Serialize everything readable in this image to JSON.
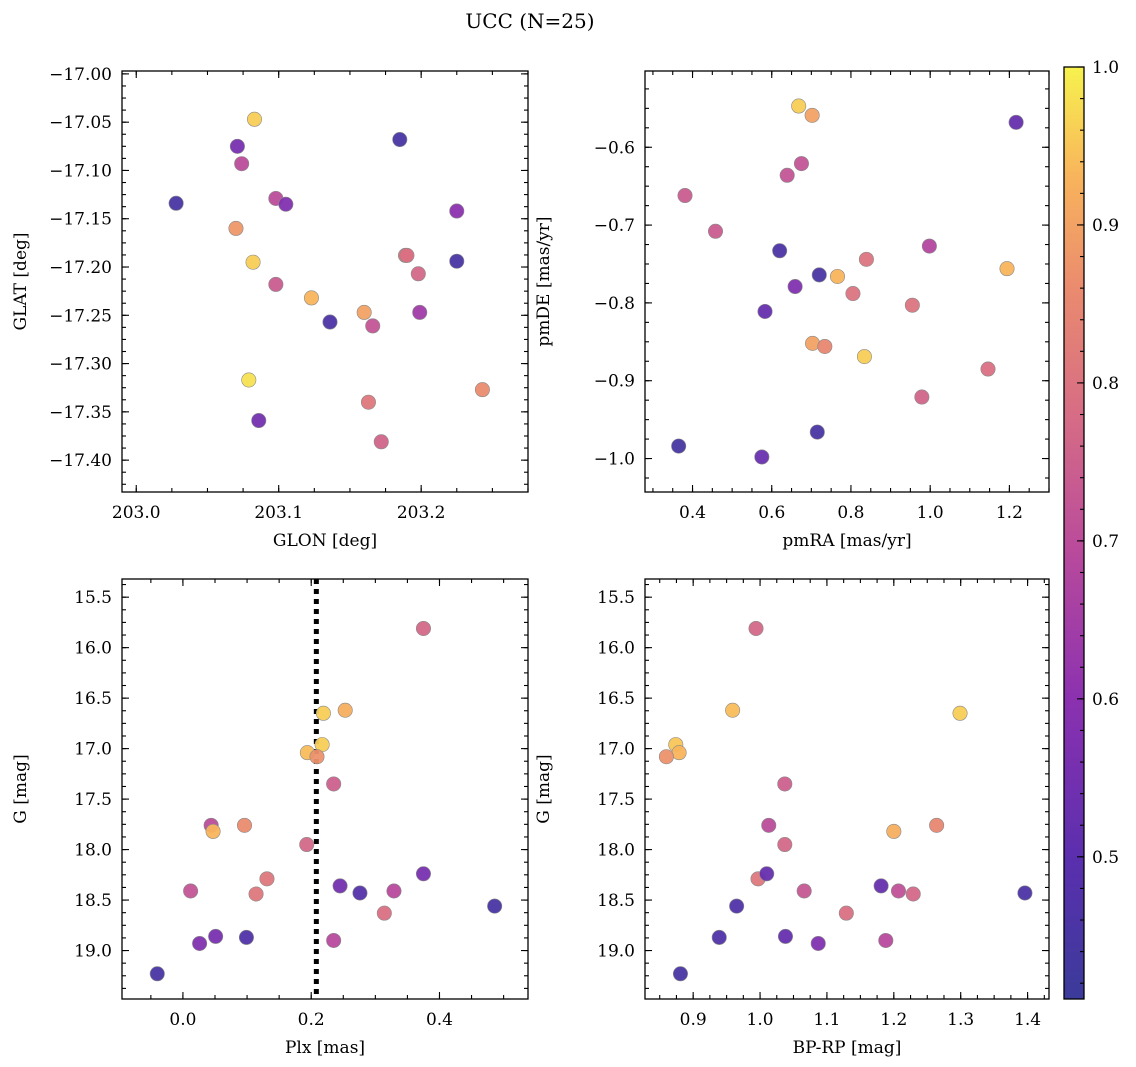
{
  "figure": {
    "title": "UCC (N=25)"
  },
  "colorbar": {
    "range": [
      0.41,
      1.0
    ],
    "ticks": [
      0.5,
      0.6,
      0.7,
      0.8,
      0.9,
      1.0
    ],
    "tick_labels": [
      "0.5",
      "0.6",
      "0.7",
      "0.8",
      "0.9",
      "1.0"
    ],
    "colormap": "plasma"
  },
  "chart_data": [
    {
      "type": "scatter",
      "id": "glon-glat",
      "xlabel": "GLON [deg]",
      "ylabel": "GLAT [deg]",
      "xlim": [
        202.99,
        203.275
      ],
      "ylim": [
        -17.433,
        -16.997
      ],
      "y_inverted": false,
      "xticks": [
        203.0,
        203.1,
        203.2
      ],
      "xtick_labels": [
        "203.0",
        "203.1",
        "203.2"
      ],
      "yticks": [
        -17.4,
        -17.35,
        -17.3,
        -17.25,
        -17.2,
        -17.15,
        -17.1,
        -17.05,
        -17.0
      ],
      "ytick_labels": [
        "−17.40",
        "−17.35",
        "−17.30",
        "−17.25",
        "−17.20",
        "−17.15",
        "−17.10",
        "−17.05",
        "−17.00"
      ],
      "points": [
        {
          "x": 203.028,
          "y": -17.134,
          "c": 0.45
        },
        {
          "x": 203.083,
          "y": -17.047,
          "c": 0.96
        },
        {
          "x": 203.071,
          "y": -17.075,
          "c": 0.56
        },
        {
          "x": 203.074,
          "y": -17.093,
          "c": 0.7
        },
        {
          "x": 203.098,
          "y": -17.129,
          "c": 0.7
        },
        {
          "x": 203.105,
          "y": -17.135,
          "c": 0.58
        },
        {
          "x": 203.07,
          "y": -17.16,
          "c": 0.88
        },
        {
          "x": 203.082,
          "y": -17.195,
          "c": 0.96
        },
        {
          "x": 203.098,
          "y": -17.218,
          "c": 0.74
        },
        {
          "x": 203.123,
          "y": -17.232,
          "c": 0.93
        },
        {
          "x": 203.136,
          "y": -17.257,
          "c": 0.46
        },
        {
          "x": 203.079,
          "y": -17.317,
          "c": 0.98
        },
        {
          "x": 203.086,
          "y": -17.359,
          "c": 0.55
        },
        {
          "x": 203.185,
          "y": -17.068,
          "c": 0.45
        },
        {
          "x": 203.16,
          "y": -17.247,
          "c": 0.9
        },
        {
          "x": 203.166,
          "y": -17.261,
          "c": 0.72
        },
        {
          "x": 203.163,
          "y": -17.34,
          "c": 0.81
        },
        {
          "x": 203.172,
          "y": -17.381,
          "c": 0.76
        },
        {
          "x": 203.189,
          "y": -17.188,
          "c": 0.8
        },
        {
          "x": 203.198,
          "y": -17.207,
          "c": 0.77
        },
        {
          "x": 203.199,
          "y": -17.247,
          "c": 0.64
        },
        {
          "x": 203.225,
          "y": -17.142,
          "c": 0.6
        },
        {
          "x": 203.225,
          "y": -17.194,
          "c": 0.45
        },
        {
          "x": 203.243,
          "y": -17.327,
          "c": 0.86
        },
        {
          "x": 203.19,
          "y": -17.188,
          "c": 0.79
        }
      ]
    },
    {
      "type": "scatter",
      "id": "pmra-pmde",
      "xlabel": "pmRA [mas/yr]",
      "ylabel": "pmDE [mas/yr]",
      "xlim": [
        0.28,
        1.3
      ],
      "ylim": [
        -1.043,
        -0.502
      ],
      "y_inverted": false,
      "xticks": [
        0.4,
        0.6,
        0.8,
        1.0,
        1.2
      ],
      "xtick_labels": [
        "0.4",
        "0.6",
        "0.8",
        "1.0",
        "1.2"
      ],
      "yticks": [
        -1.0,
        -0.9,
        -0.8,
        -0.7,
        -0.6
      ],
      "ytick_labels": [
        "−1.0",
        "−0.9",
        "−0.8",
        "−0.7",
        "−0.6"
      ],
      "points": [
        {
          "x": 0.668,
          "y": -0.547,
          "c": 0.96
        },
        {
          "x": 0.702,
          "y": -0.559,
          "c": 0.9
        },
        {
          "x": 1.217,
          "y": -0.568,
          "c": 0.52
        },
        {
          "x": 0.675,
          "y": -0.621,
          "c": 0.72
        },
        {
          "x": 0.639,
          "y": -0.636,
          "c": 0.72
        },
        {
          "x": 0.381,
          "y": -0.662,
          "c": 0.74
        },
        {
          "x": 0.458,
          "y": -0.708,
          "c": 0.74
        },
        {
          "x": 0.998,
          "y": -0.727,
          "c": 0.68
        },
        {
          "x": 0.62,
          "y": -0.733,
          "c": 0.46
        },
        {
          "x": 0.72,
          "y": -0.764,
          "c": 0.45
        },
        {
          "x": 0.766,
          "y": -0.766,
          "c": 0.93
        },
        {
          "x": 0.839,
          "y": -0.744,
          "c": 0.8
        },
        {
          "x": 1.194,
          "y": -0.756,
          "c": 0.93
        },
        {
          "x": 0.659,
          "y": -0.779,
          "c": 0.58
        },
        {
          "x": 0.805,
          "y": -0.788,
          "c": 0.8
        },
        {
          "x": 0.583,
          "y": -0.811,
          "c": 0.52
        },
        {
          "x": 0.955,
          "y": -0.803,
          "c": 0.8
        },
        {
          "x": 0.703,
          "y": -0.852,
          "c": 0.9
        },
        {
          "x": 0.734,
          "y": -0.856,
          "c": 0.85
        },
        {
          "x": 0.834,
          "y": -0.869,
          "c": 0.96
        },
        {
          "x": 1.146,
          "y": -0.885,
          "c": 0.79
        },
        {
          "x": 0.979,
          "y": -0.921,
          "c": 0.76
        },
        {
          "x": 0.715,
          "y": -0.966,
          "c": 0.45
        },
        {
          "x": 0.365,
          "y": -0.984,
          "c": 0.44
        },
        {
          "x": 0.575,
          "y": -0.998,
          "c": 0.53
        }
      ]
    },
    {
      "type": "scatter",
      "id": "plx-g",
      "xlabel": "Plx [mas]",
      "ylabel": "G [mag]",
      "xlim": [
        -0.095,
        0.538
      ],
      "ylim": [
        19.48,
        15.32
      ],
      "y_inverted": true,
      "vline": {
        "x": 0.208,
        "style": "dotted"
      },
      "xticks": [
        0.0,
        0.2,
        0.4
      ],
      "xtick_labels": [
        "0.0",
        "0.2",
        "0.4"
      ],
      "yticks": [
        15.5,
        16.0,
        16.5,
        17.0,
        17.5,
        18.0,
        18.5,
        19.0
      ],
      "ytick_labels": [
        "15.5",
        "16.0",
        "16.5",
        "17.0",
        "17.5",
        "18.0",
        "18.5",
        "19.0"
      ],
      "points": [
        {
          "x": 0.375,
          "y": 15.81,
          "c": 0.77
        },
        {
          "x": 0.219,
          "y": 16.65,
          "c": 0.96
        },
        {
          "x": 0.253,
          "y": 16.62,
          "c": 0.92
        },
        {
          "x": 0.217,
          "y": 16.96,
          "c": 0.96
        },
        {
          "x": 0.194,
          "y": 17.04,
          "c": 0.94
        },
        {
          "x": 0.209,
          "y": 17.08,
          "c": 0.87
        },
        {
          "x": 0.235,
          "y": 17.35,
          "c": 0.75
        },
        {
          "x": 0.044,
          "y": 17.76,
          "c": 0.7
        },
        {
          "x": 0.047,
          "y": 17.82,
          "c": 0.93
        },
        {
          "x": 0.096,
          "y": 17.76,
          "c": 0.86
        },
        {
          "x": 0.193,
          "y": 17.95,
          "c": 0.77
        },
        {
          "x": 0.131,
          "y": 18.29,
          "c": 0.81
        },
        {
          "x": 0.012,
          "y": 18.41,
          "c": 0.72
        },
        {
          "x": 0.114,
          "y": 18.44,
          "c": 0.81
        },
        {
          "x": 0.375,
          "y": 18.24,
          "c": 0.56
        },
        {
          "x": 0.245,
          "y": 18.36,
          "c": 0.55
        },
        {
          "x": 0.276,
          "y": 18.43,
          "c": 0.48
        },
        {
          "x": 0.329,
          "y": 18.41,
          "c": 0.69
        },
        {
          "x": 0.314,
          "y": 18.63,
          "c": 0.79
        },
        {
          "x": 0.486,
          "y": 18.56,
          "c": 0.45
        },
        {
          "x": 0.051,
          "y": 18.86,
          "c": 0.56
        },
        {
          "x": 0.026,
          "y": 18.93,
          "c": 0.58
        },
        {
          "x": 0.099,
          "y": 18.87,
          "c": 0.47
        },
        {
          "x": 0.235,
          "y": 18.9,
          "c": 0.69
        },
        {
          "x": -0.04,
          "y": 19.23,
          "c": 0.45
        }
      ]
    },
    {
      "type": "scatter",
      "id": "bprp-g",
      "xlabel": "BP-RP [mag]",
      "ylabel": "G [mag]",
      "xlim": [
        0.828,
        1.432
      ],
      "ylim": [
        19.48,
        15.32
      ],
      "y_inverted": true,
      "xticks": [
        0.9,
        1.0,
        1.1,
        1.2,
        1.3,
        1.4
      ],
      "xtick_labels": [
        "0.9",
        "1.0",
        "1.1",
        "1.2",
        "1.3",
        "1.4"
      ],
      "yticks": [
        15.5,
        16.0,
        16.5,
        17.0,
        17.5,
        18.0,
        18.5,
        19.0
      ],
      "ytick_labels": [
        "15.5",
        "16.0",
        "16.5",
        "17.0",
        "17.5",
        "18.0",
        "18.5",
        "19.0"
      ],
      "points": [
        {
          "x": 0.994,
          "y": 15.81,
          "c": 0.77
        },
        {
          "x": 0.959,
          "y": 16.62,
          "c": 0.94
        },
        {
          "x": 1.299,
          "y": 16.65,
          "c": 0.96
        },
        {
          "x": 0.874,
          "y": 16.96,
          "c": 0.95
        },
        {
          "x": 0.879,
          "y": 17.04,
          "c": 0.93
        },
        {
          "x": 0.86,
          "y": 17.08,
          "c": 0.87
        },
        {
          "x": 1.037,
          "y": 17.35,
          "c": 0.75
        },
        {
          "x": 1.013,
          "y": 17.76,
          "c": 0.7
        },
        {
          "x": 1.037,
          "y": 17.95,
          "c": 0.77
        },
        {
          "x": 1.2,
          "y": 17.82,
          "c": 0.92
        },
        {
          "x": 1.264,
          "y": 17.76,
          "c": 0.85
        },
        {
          "x": 0.997,
          "y": 18.29,
          "c": 0.81
        },
        {
          "x": 1.01,
          "y": 18.24,
          "c": 0.52
        },
        {
          "x": 1.066,
          "y": 18.41,
          "c": 0.73
        },
        {
          "x": 1.181,
          "y": 18.36,
          "c": 0.52
        },
        {
          "x": 1.207,
          "y": 18.41,
          "c": 0.71
        },
        {
          "x": 1.229,
          "y": 18.44,
          "c": 0.77
        },
        {
          "x": 1.396,
          "y": 18.43,
          "c": 0.46
        },
        {
          "x": 0.965,
          "y": 18.56,
          "c": 0.47
        },
        {
          "x": 1.129,
          "y": 18.63,
          "c": 0.79
        },
        {
          "x": 0.939,
          "y": 18.87,
          "c": 0.47
        },
        {
          "x": 1.038,
          "y": 18.86,
          "c": 0.52
        },
        {
          "x": 1.087,
          "y": 18.93,
          "c": 0.58
        },
        {
          "x": 1.188,
          "y": 18.9,
          "c": 0.69
        },
        {
          "x": 0.881,
          "y": 19.23,
          "c": 0.45
        }
      ]
    }
  ]
}
